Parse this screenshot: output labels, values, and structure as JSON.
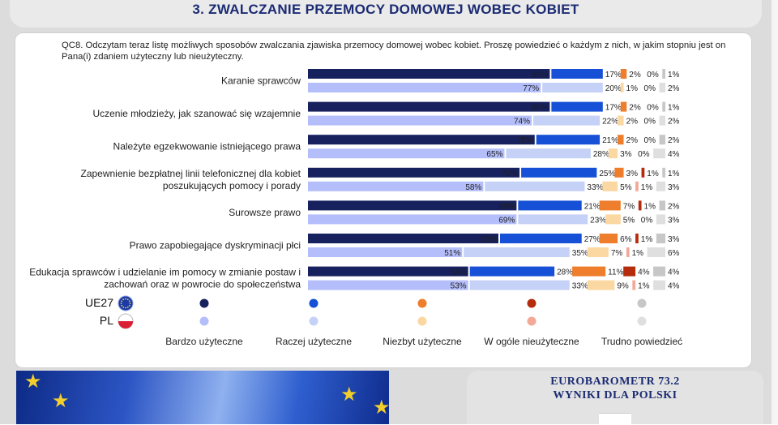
{
  "header": {
    "title": "3. ZWALCZANIE PRZEMOCY DOMOWEJ WOBEC KOBIET"
  },
  "question": "QC8. Odczytam teraz listę możliwych sposobów zwalczania zjawiska przemocy domowej wobec kobiet. Proszę powiedzieć o każdym z nich, w jakim stopniu jest on Pana(i) zdaniem użyteczny lub nieużyteczny.",
  "colors": {
    "ue27": [
      "#17215e",
      "#1550d6",
      "#ee7d2c",
      "#b52c0d",
      "#c7c7c7"
    ],
    "pl": [
      "#b4befa",
      "#c5d1f6",
      "#fbd7a2",
      "#f3a898",
      "#dfdfdf"
    ]
  },
  "chart_data": {
    "type": "bar",
    "stacked": true,
    "orientation": "horizontal",
    "categories": [
      [
        "Karanie sprawców"
      ],
      [
        "Uczenie młodzieży, jak szanować się wzajemnie"
      ],
      [
        "Należyte egzekwowanie istniejącego prawa"
      ],
      [
        "Zapewnienie bezpłatnej linii telefonicznej dla kobiet",
        "poszukujących pomocy i porady"
      ],
      [
        "Surowsze prawo"
      ],
      [
        "Prawo zapobiegające dyskryminacji płci"
      ],
      [
        "Edukacja sprawców i udzielanie im pomocy w zmianie postaw i",
        "zachowań oraz w powrocie do społeczeństwa"
      ]
    ],
    "groups": [
      "UE27",
      "PL"
    ],
    "series": [
      {
        "name": "Bardzo użyteczne",
        "UE27": [
          80,
          80,
          75,
          70,
          69,
          63,
          53
        ],
        "PL": [
          77,
          74,
          65,
          58,
          69,
          51,
          53
        ]
      },
      {
        "name": "Raczej użyteczne",
        "UE27": [
          17,
          17,
          21,
          25,
          21,
          27,
          28
        ],
        "PL": [
          20,
          22,
          28,
          33,
          23,
          35,
          33
        ]
      },
      {
        "name": "Niezbyt użyteczne",
        "UE27": [
          2,
          2,
          2,
          3,
          7,
          6,
          11
        ],
        "PL": [
          1,
          2,
          3,
          5,
          5,
          7,
          9
        ]
      },
      {
        "name": "W ogóle nieużyteczne",
        "UE27": [
          0,
          0,
          0,
          1,
          1,
          1,
          4
        ],
        "PL": [
          0,
          0,
          0,
          1,
          0,
          1,
          1
        ]
      },
      {
        "name": "Trudno powiedzieć",
        "UE27": [
          1,
          1,
          2,
          1,
          2,
          3,
          4
        ],
        "PL": [
          2,
          2,
          4,
          3,
          3,
          6,
          4
        ]
      }
    ],
    "value_suffix": "%",
    "legend": [
      "Bardzo użyteczne",
      "Raczej użyteczne",
      "Niezbyt użyteczne",
      "W ogóle nieużyteczne",
      "Trudno powiedzieć"
    ]
  },
  "legend_rows": [
    "UE27",
    "PL"
  ],
  "footer": {
    "brand_line1": "EUROBAROMETR 73.2",
    "brand_line2": "WYNIKI DLA POLSKI"
  }
}
